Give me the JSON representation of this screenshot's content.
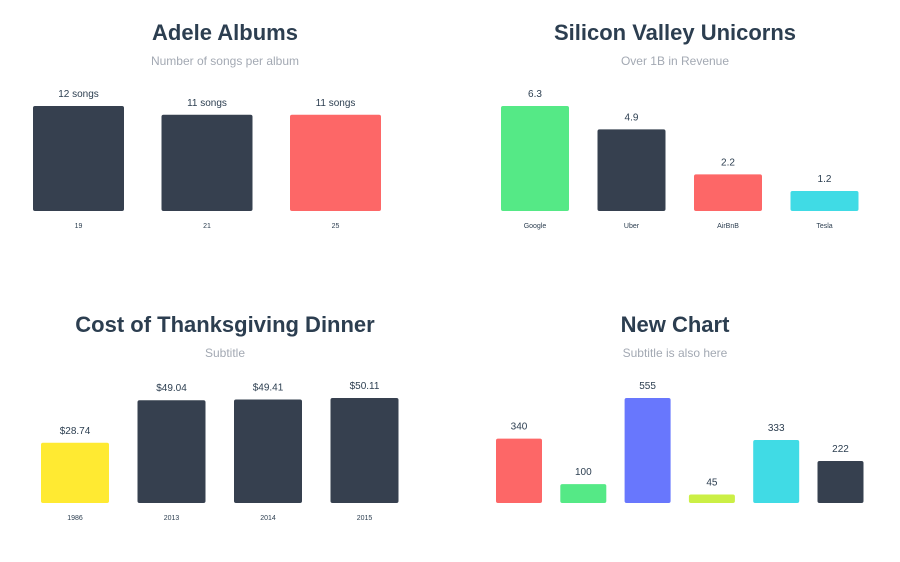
{
  "chart_data": [
    {
      "type": "bar",
      "title": "Adele Albums",
      "subtitle": "Number of songs per album",
      "categories": [
        "19",
        "21",
        "25"
      ],
      "values": [
        12,
        11,
        11
      ],
      "data_labels": [
        "12 songs",
        "11 songs",
        "11 songs"
      ],
      "colors": [
        "#36404f",
        "#36404f",
        "#fd6767"
      ],
      "ylim": [
        0,
        12
      ]
    },
    {
      "type": "bar",
      "title": "Silicon Valley Unicorns",
      "subtitle": "Over 1B in Revenue",
      "categories": [
        "Google",
        "Uber",
        "AirBnB",
        "Tesla"
      ],
      "values": [
        6.3,
        4.9,
        2.2,
        1.2
      ],
      "data_labels": [
        "6.3",
        "4.9",
        "2.2",
        "1.2"
      ],
      "colors": [
        "#55e986",
        "#36404f",
        "#fd6767",
        "#40dbe5"
      ],
      "ylim": [
        0,
        6.3
      ]
    },
    {
      "type": "bar",
      "title": "Cost of Thanksgiving Dinner",
      "subtitle": "Subtitle",
      "categories": [
        "1986",
        "2013",
        "2014",
        "2015"
      ],
      "values": [
        28.74,
        49.04,
        49.41,
        50.11
      ],
      "data_labels": [
        "$28.74",
        "$49.04",
        "$49.41",
        "$50.11"
      ],
      "colors": [
        "#ffea32",
        "#36404f",
        "#36404f",
        "#36404f"
      ],
      "ylim": [
        0,
        50.11
      ]
    },
    {
      "type": "bar",
      "title": "New Chart",
      "subtitle": "Subtitle is also here",
      "categories": [
        "",
        "",
        "",
        "",
        "",
        ""
      ],
      "values": [
        340,
        100,
        555,
        45,
        333,
        222
      ],
      "data_labels": [
        "340",
        "100",
        "555",
        "45",
        "333",
        "222"
      ],
      "colors": [
        "#fd6767",
        "#55e986",
        "#6877fd",
        "#cbef45",
        "#40dbe5",
        "#36404f"
      ],
      "ylim": [
        0,
        555
      ]
    }
  ]
}
